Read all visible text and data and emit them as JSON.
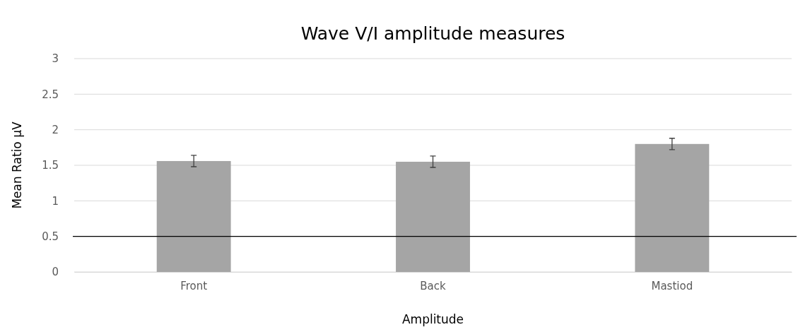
{
  "chart_data": {
    "type": "bar",
    "title": "Wave V/I amplitude measures",
    "xlabel": "Amplitude",
    "ylabel": "Mean Ratio µV",
    "categories": [
      "Front",
      "Back",
      "Mastiod"
    ],
    "values": [
      1.56,
      1.55,
      1.8
    ],
    "errors": [
      0.08,
      0.08,
      0.08
    ],
    "color": "#a5a5a5",
    "ylim": [
      0,
      3
    ],
    "yticks": [
      0,
      0.5,
      1,
      1.5,
      2,
      2.5,
      3
    ],
    "grid": "y",
    "ref_lines": [
      {
        "axis": "y",
        "value": 0.5,
        "color": "#000000"
      }
    ]
  }
}
